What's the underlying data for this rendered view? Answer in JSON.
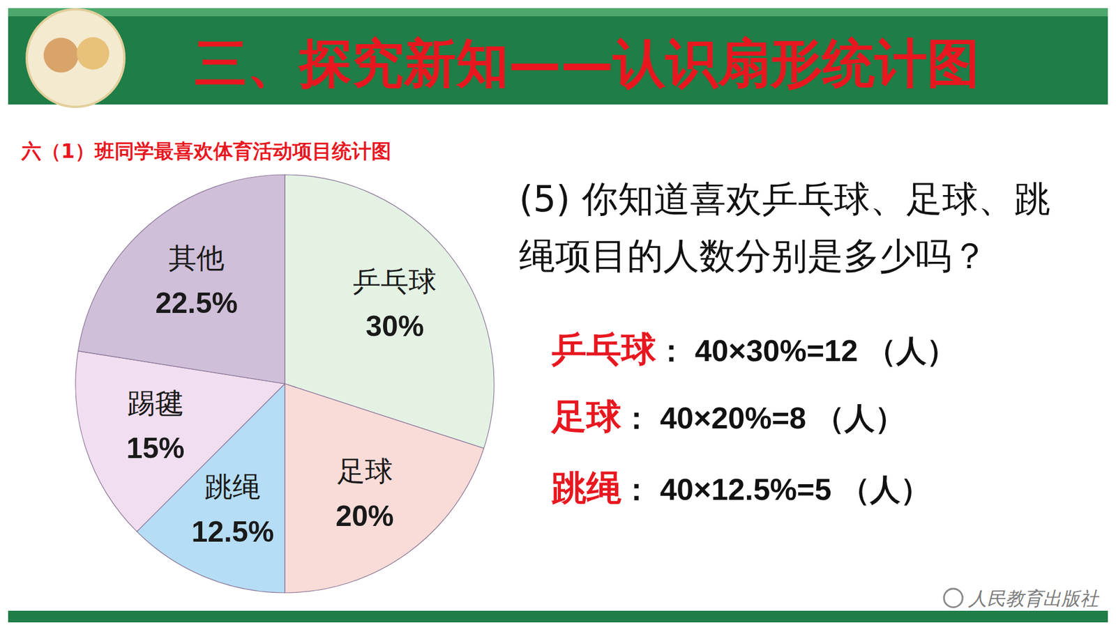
{
  "header": {
    "title": "三、探究新知——认识扇形统计图"
  },
  "chart_data": {
    "type": "pie",
    "title": "六（1）班同学最喜欢体育活动项目统计图",
    "categories": [
      "乒乓球",
      "足球",
      "跳绳",
      "踢毽",
      "其他"
    ],
    "values": [
      30,
      20,
      12.5,
      15,
      22.5
    ],
    "value_labels": [
      "30%",
      "20%",
      "12.5%",
      "15%",
      "22.5%"
    ],
    "colors": [
      "#e4f2e4",
      "#f9dcd8",
      "#b5ddf5",
      "#f1def0",
      "#cfbfd9"
    ],
    "data_labels": true
  },
  "question": "(5) 你知道喜欢乒乓球、足球、跳绳项目的人数分别是多少吗？",
  "answers": [
    {
      "item": "乒乓球",
      "text": "：  40×30%=12 （人）"
    },
    {
      "item": "足球",
      "text": "：  40×20%=8 （人）"
    },
    {
      "item": "跳绳",
      "text": "：  40×12.5%=5  （人）"
    }
  ],
  "footer": {
    "publisher": "人民教育出版社"
  }
}
